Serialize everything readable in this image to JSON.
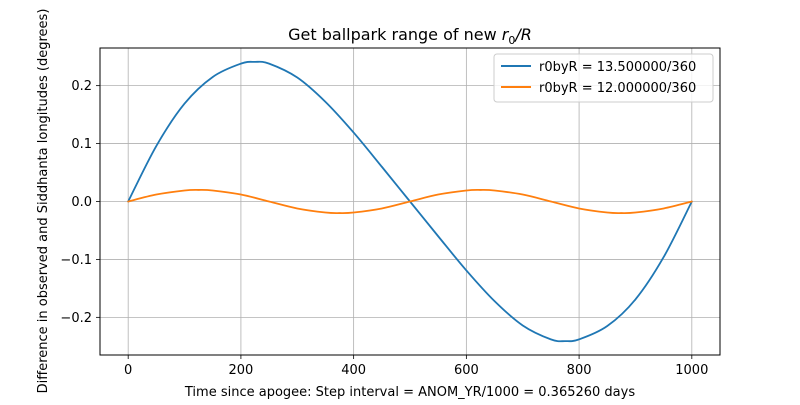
{
  "chart_data": {
    "type": "line",
    "title_prefix": "Get ballpark range of new ",
    "title_math_main": "r",
    "title_math_sub": "0",
    "title_math_rest": "/R",
    "xlabel": "Time since apogee: Step interval = ANOM_YR/1000 = 0.365260 days",
    "ylabel": "Difference in observed and Siddhanta longitudes (degrees)",
    "xlim": [
      -50,
      1050
    ],
    "ylim": [
      -0.265,
      0.265
    ],
    "xticks": [
      0,
      200,
      400,
      600,
      800,
      1000
    ],
    "xtick_labels": [
      "0",
      "200",
      "400",
      "600",
      "800",
      "1000"
    ],
    "yticks": [
      -0.2,
      -0.1,
      0.0,
      0.1,
      0.2
    ],
    "ytick_labels": [
      "−0.2",
      "−0.1",
      "0.0",
      "0.1",
      "0.2"
    ],
    "grid": true,
    "legend_position": "top-right",
    "series": [
      {
        "name": "r0byR = 13.500000/360",
        "color": "#1f77b4",
        "x": [
          0,
          50,
          100,
          150,
          200,
          225,
          250,
          300,
          350,
          400,
          450,
          500,
          550,
          600,
          650,
          700,
          750,
          775,
          800,
          850,
          900,
          950,
          1000
        ],
        "y": [
          0.0,
          0.096,
          0.169,
          0.215,
          0.238,
          0.241,
          0.238,
          0.214,
          0.172,
          0.119,
          0.06,
          0.0,
          -0.06,
          -0.119,
          -0.172,
          -0.214,
          -0.238,
          -0.241,
          -0.238,
          -0.215,
          -0.169,
          -0.096,
          0.0
        ]
      },
      {
        "name": "r0byR = 12.000000/360",
        "color": "#ff7f0e",
        "x": [
          0,
          50,
          100,
          125,
          150,
          200,
          250,
          300,
          350,
          375,
          400,
          450,
          500,
          550,
          600,
          625,
          650,
          700,
          750,
          800,
          850,
          875,
          900,
          950,
          1000
        ],
        "y": [
          0.0,
          0.012,
          0.019,
          0.02,
          0.019,
          0.012,
          0.0,
          -0.012,
          -0.019,
          -0.02,
          -0.019,
          -0.012,
          0.0,
          0.012,
          0.019,
          0.02,
          0.019,
          0.012,
          0.0,
          -0.012,
          -0.019,
          -0.02,
          -0.019,
          -0.012,
          0.0
        ]
      }
    ]
  }
}
